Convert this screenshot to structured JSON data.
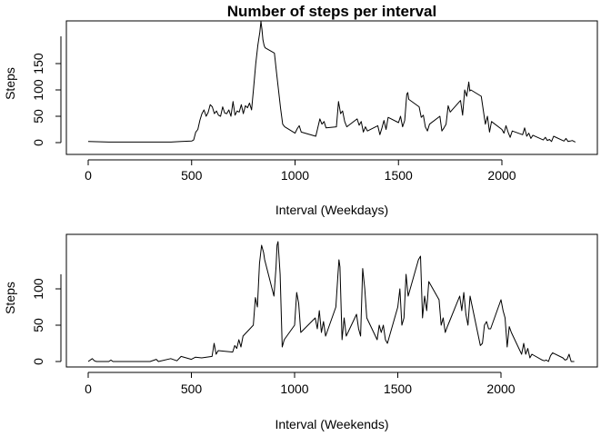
{
  "chart_data": [
    {
      "type": "line",
      "title": "Number of steps per interval",
      "xlabel": "Interval (Weekdays)",
      "ylabel": "Steps",
      "xlim": [
        0,
        2355
      ],
      "ylim": [
        0,
        230
      ],
      "xticks": [
        0,
        500,
        1000,
        1500,
        2000
      ],
      "yticks": [
        0,
        50,
        100,
        150
      ],
      "grid": false,
      "legend": "none",
      "series": [
        {
          "color": "#000000",
          "x": [
            0,
            100,
            200,
            300,
            400,
            450,
            500,
            510,
            520,
            530,
            540,
            550,
            560,
            570,
            580,
            590,
            600,
            610,
            620,
            630,
            640,
            650,
            660,
            670,
            680,
            690,
            700,
            710,
            720,
            730,
            740,
            750,
            760,
            770,
            780,
            790,
            800,
            810,
            820,
            830,
            835,
            840,
            845,
            850,
            855,
            900,
            910,
            920,
            930,
            940,
            950,
            1000,
            1010,
            1020,
            1030,
            1100,
            1110,
            1120,
            1130,
            1140,
            1150,
            1200,
            1210,
            1220,
            1230,
            1240,
            1250,
            1300,
            1310,
            1320,
            1330,
            1340,
            1350,
            1400,
            1410,
            1420,
            1430,
            1440,
            1450,
            1500,
            1510,
            1520,
            1530,
            1540,
            1545,
            1550,
            1600,
            1610,
            1620,
            1630,
            1640,
            1650,
            1700,
            1710,
            1720,
            1730,
            1740,
            1750,
            1800,
            1810,
            1820,
            1830,
            1840,
            1845,
            1850,
            1900,
            1910,
            1920,
            1930,
            1940,
            1950,
            2000,
            2010,
            2020,
            2030,
            2040,
            2050,
            2100,
            2110,
            2120,
            2130,
            2140,
            2150,
            2200,
            2210,
            2220,
            2230,
            2240,
            2250,
            2300,
            2310,
            2320,
            2330,
            2340,
            2355
          ],
          "y": [
            2,
            1,
            1,
            1,
            1,
            2,
            3,
            5,
            20,
            25,
            42,
            55,
            62,
            50,
            57,
            72,
            68,
            55,
            60,
            52,
            50,
            68,
            56,
            55,
            62,
            50,
            78,
            52,
            60,
            58,
            72,
            55,
            70,
            66,
            75,
            62,
            105,
            150,
            185,
            210,
            230,
            215,
            195,
            185,
            180,
            170,
            135,
            100,
            65,
            35,
            30,
            18,
            26,
            32,
            20,
            12,
            28,
            45,
            35,
            40,
            28,
            30,
            78,
            55,
            60,
            40,
            30,
            45,
            33,
            40,
            20,
            30,
            22,
            32,
            15,
            28,
            42,
            25,
            48,
            38,
            50,
            30,
            42,
            92,
            95,
            82,
            68,
            48,
            52,
            30,
            22,
            35,
            50,
            22,
            28,
            35,
            70,
            58,
            80,
            52,
            100,
            88,
            115,
            98,
            100,
            88,
            62,
            35,
            50,
            20,
            40,
            25,
            18,
            32,
            20,
            10,
            22,
            15,
            28,
            12,
            18,
            8,
            14,
            5,
            10,
            4,
            6,
            2,
            12,
            3,
            8,
            2,
            3,
            4,
            1
          ]
        }
      ]
    },
    {
      "type": "line",
      "title": "",
      "xlabel": "Interval (Weekends)",
      "ylabel": "Steps",
      "xlim": [
        0,
        2355
      ],
      "ylim": [
        0,
        170
      ],
      "xticks": [
        0,
        500,
        1000,
        1500,
        2000
      ],
      "yticks": [
        0,
        50,
        100
      ],
      "grid": false,
      "legend": "none",
      "series": [
        {
          "color": "#000000",
          "x": [
            0,
            20,
            30,
            40,
            100,
            110,
            120,
            200,
            300,
            330,
            340,
            400,
            430,
            450,
            500,
            520,
            550,
            600,
            610,
            620,
            630,
            700,
            710,
            720,
            730,
            740,
            750,
            800,
            810,
            820,
            830,
            840,
            845,
            850,
            855,
            900,
            910,
            915,
            920,
            930,
            940,
            950,
            1000,
            1010,
            1020,
            1030,
            1100,
            1110,
            1120,
            1130,
            1140,
            1150,
            1200,
            1210,
            1215,
            1220,
            1230,
            1240,
            1250,
            1300,
            1310,
            1320,
            1330,
            1340,
            1350,
            1400,
            1410,
            1420,
            1430,
            1440,
            1450,
            1500,
            1510,
            1520,
            1530,
            1540,
            1550,
            1600,
            1610,
            1620,
            1630,
            1640,
            1650,
            1700,
            1710,
            1720,
            1730,
            1740,
            1750,
            1800,
            1810,
            1820,
            1830,
            1840,
            1850,
            1900,
            1910,
            1920,
            1930,
            1940,
            1950,
            2000,
            2010,
            2020,
            2030,
            2040,
            2050,
            2100,
            2110,
            2120,
            2130,
            2140,
            2150,
            2200,
            2210,
            2220,
            2230,
            2240,
            2250,
            2300,
            2310,
            2320,
            2330,
            2340,
            2355
          ],
          "y": [
            0,
            4,
            1,
            0,
            0,
            2,
            0,
            0,
            0,
            3,
            0,
            4,
            1,
            7,
            3,
            6,
            5,
            7,
            25,
            10,
            15,
            13,
            22,
            18,
            30,
            20,
            35,
            50,
            88,
            75,
            135,
            160,
            155,
            150,
            140,
            90,
            130,
            160,
            165,
            120,
            20,
            30,
            50,
            95,
            80,
            40,
            60,
            45,
            70,
            40,
            55,
            35,
            75,
            120,
            140,
            130,
            30,
            60,
            35,
            65,
            45,
            35,
            128,
            100,
            60,
            30,
            50,
            40,
            50,
            30,
            25,
            75,
            100,
            50,
            60,
            120,
            90,
            140,
            145,
            60,
            90,
            70,
            110,
            85,
            50,
            60,
            40,
            48,
            55,
            90,
            70,
            95,
            65,
            50,
            90,
            22,
            25,
            50,
            55,
            45,
            45,
            85,
            70,
            60,
            20,
            48,
            40,
            10,
            25,
            10,
            18,
            5,
            10,
            2,
            1,
            2,
            0,
            8,
            12,
            5,
            2,
            3,
            10,
            0,
            0
          ]
        }
      ]
    }
  ]
}
